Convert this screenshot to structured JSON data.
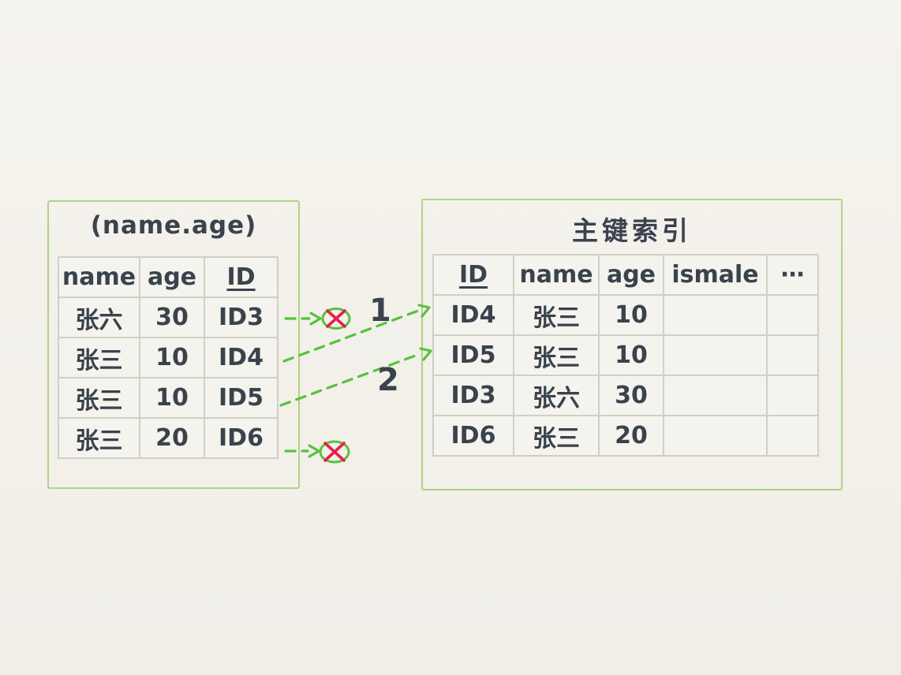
{
  "colors": {
    "background": "#f2f0e9",
    "panel_border_green": "#aed383",
    "grid_border_gray": "#d0cfc6",
    "text_dark": "#3a424d",
    "arrow_green": "#57c13d",
    "cross_red": "#e5204a"
  },
  "left_table": {
    "title": "(name.age)",
    "columns": [
      "name",
      "age",
      "ID"
    ],
    "underline_col": 2,
    "rows": [
      [
        "张六",
        "30",
        "ID3"
      ],
      [
        "张三",
        "10",
        "ID4"
      ],
      [
        "张三",
        "10",
        "ID5"
      ],
      [
        "张三",
        "20",
        "ID6"
      ]
    ]
  },
  "right_table": {
    "title": "主键索引",
    "columns": [
      "ID",
      "name",
      "age",
      "ismale",
      "⋯"
    ],
    "underline_col": 0,
    "rows": [
      [
        "ID4",
        "张三",
        "10",
        "",
        ""
      ],
      [
        "ID5",
        "张三",
        "10",
        "",
        ""
      ],
      [
        "ID3",
        "张六",
        "30",
        "",
        ""
      ],
      [
        "ID6",
        "张三",
        "20",
        "",
        ""
      ]
    ]
  },
  "annotations": {
    "step1": "1",
    "step2": "2"
  },
  "icons": {
    "blocked_mark": "green-ellipse-red-x-icon",
    "arrow_style": "green-dashed-arrow"
  }
}
